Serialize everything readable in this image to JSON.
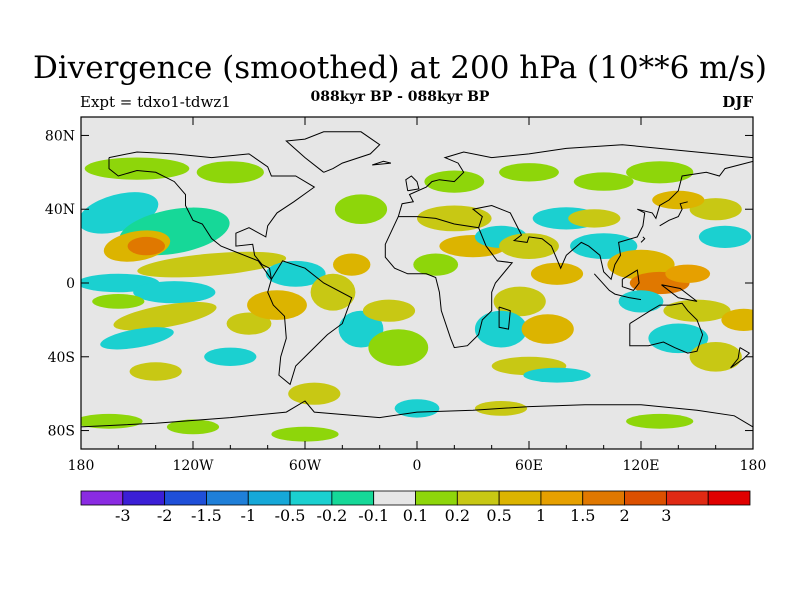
{
  "title": "Divergence (smoothed) at 200 hPa (10**6 m/s)",
  "subtitle": "088kyr BP - 088kyr BP",
  "experiment": "Expt = tdxo1-tdwz1",
  "season": "DJF",
  "map": {
    "projection": "equirectangular",
    "lon_range": [
      -180,
      180
    ],
    "lat_range": [
      -90,
      90
    ],
    "background_color": "#e6e6e6",
    "lat_ticks": [
      "80N",
      "40N",
      "0",
      "40S",
      "80S"
    ],
    "lon_ticks": [
      "180",
      "120W",
      "60W",
      "0",
      "60E",
      "120E",
      "180"
    ]
  },
  "colorbar": {
    "colors": [
      "#8a2be2",
      "#3b1fd6",
      "#1f4fd8",
      "#1f7fd8",
      "#16a8d8",
      "#1bd0d0",
      "#16d898",
      "#e6e6e6",
      "#8ed60a",
      "#c8c814",
      "#dcb400",
      "#e6a000",
      "#e07800",
      "#dc5000",
      "#e02a14",
      "#e00000"
    ],
    "labels": [
      "-3",
      "-2",
      "-1.5",
      "-1",
      "-0.5",
      "-0.2",
      "-0.1",
      "0.1",
      "0.2",
      "0.5",
      "1",
      "1.5",
      "2",
      "3"
    ]
  }
}
